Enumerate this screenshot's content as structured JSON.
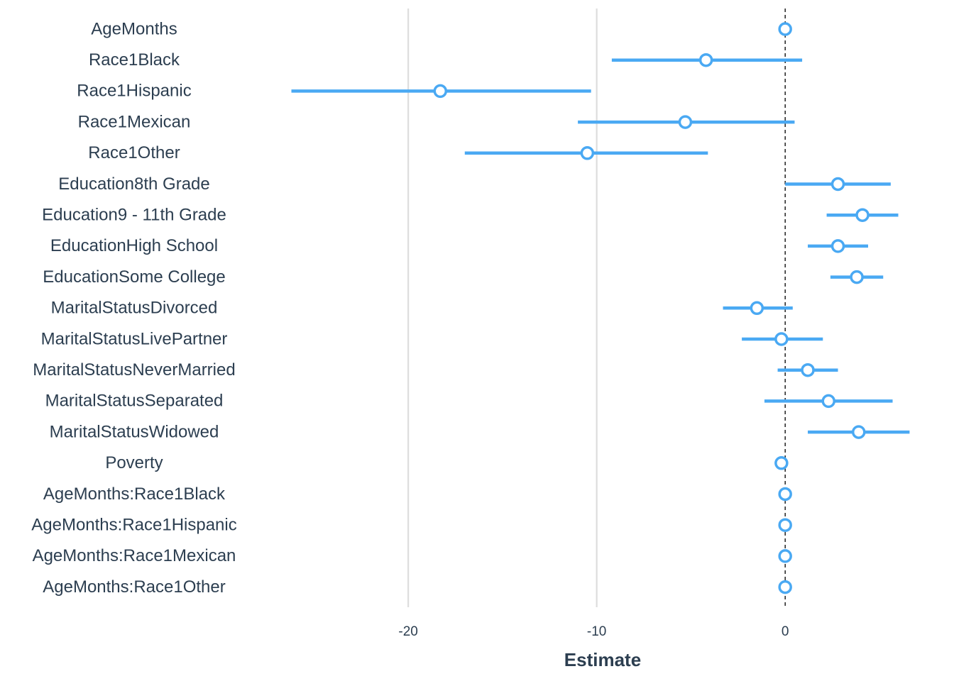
{
  "chart_data": {
    "type": "scatter",
    "subtype": "coefficient-plot",
    "title": "",
    "xlabel": "Estimate",
    "ylabel": "",
    "xlim": [
      -27.5,
      7.3
    ],
    "x_ticks": [
      -20,
      -10,
      0
    ],
    "x_tick_labels": [
      "-20",
      "-10",
      "0"
    ],
    "reference_line": 0,
    "grid": true,
    "legend": "none",
    "colors": {
      "point_line": "#4aa9f3",
      "grid": "#dddddd",
      "reference": "#111111",
      "text": "#2c3e50"
    },
    "terms": [
      {
        "label": "AgeMonths",
        "estimate": 0.0,
        "conf_low": -0.1,
        "conf_high": 0.1
      },
      {
        "label": "Race1Black",
        "estimate": -4.2,
        "conf_low": -9.2,
        "conf_high": 0.9
      },
      {
        "label": "Race1Hispanic",
        "estimate": -18.3,
        "conf_low": -26.2,
        "conf_high": -10.3
      },
      {
        "label": "Race1Mexican",
        "estimate": -5.3,
        "conf_low": -11.0,
        "conf_high": 0.5
      },
      {
        "label": "Race1Other",
        "estimate": -10.5,
        "conf_low": -17.0,
        "conf_high": -4.1
      },
      {
        "label": "Education8th Grade",
        "estimate": 2.8,
        "conf_low": 0.0,
        "conf_high": 5.6
      },
      {
        "label": "Education9 - 11th Grade",
        "estimate": 4.1,
        "conf_low": 2.2,
        "conf_high": 6.0
      },
      {
        "label": "EducationHigh School",
        "estimate": 2.8,
        "conf_low": 1.2,
        "conf_high": 4.4
      },
      {
        "label": "EducationSome College",
        "estimate": 3.8,
        "conf_low": 2.4,
        "conf_high": 5.2
      },
      {
        "label": "MaritalStatusDivorced",
        "estimate": -1.5,
        "conf_low": -3.3,
        "conf_high": 0.4
      },
      {
        "label": "MaritalStatusLivePartner",
        "estimate": -0.2,
        "conf_low": -2.3,
        "conf_high": 2.0
      },
      {
        "label": "MaritalStatusNeverMarried",
        "estimate": 1.2,
        "conf_low": -0.4,
        "conf_high": 2.8
      },
      {
        "label": "MaritalStatusSeparated",
        "estimate": 2.3,
        "conf_low": -1.1,
        "conf_high": 5.7
      },
      {
        "label": "MaritalStatusWidowed",
        "estimate": 3.9,
        "conf_low": 1.2,
        "conf_high": 6.6
      },
      {
        "label": "Poverty",
        "estimate": -0.2,
        "conf_low": -0.4,
        "conf_high": 0.0
      },
      {
        "label": "AgeMonths:Race1Black",
        "estimate": 0.0,
        "conf_low": -0.1,
        "conf_high": 0.1
      },
      {
        "label": "AgeMonths:Race1Hispanic",
        "estimate": 0.0,
        "conf_low": -0.1,
        "conf_high": 0.1
      },
      {
        "label": "AgeMonths:Race1Mexican",
        "estimate": 0.0,
        "conf_low": -0.1,
        "conf_high": 0.1
      },
      {
        "label": "AgeMonths:Race1Other",
        "estimate": 0.0,
        "conf_low": -0.1,
        "conf_high": 0.1
      }
    ]
  }
}
